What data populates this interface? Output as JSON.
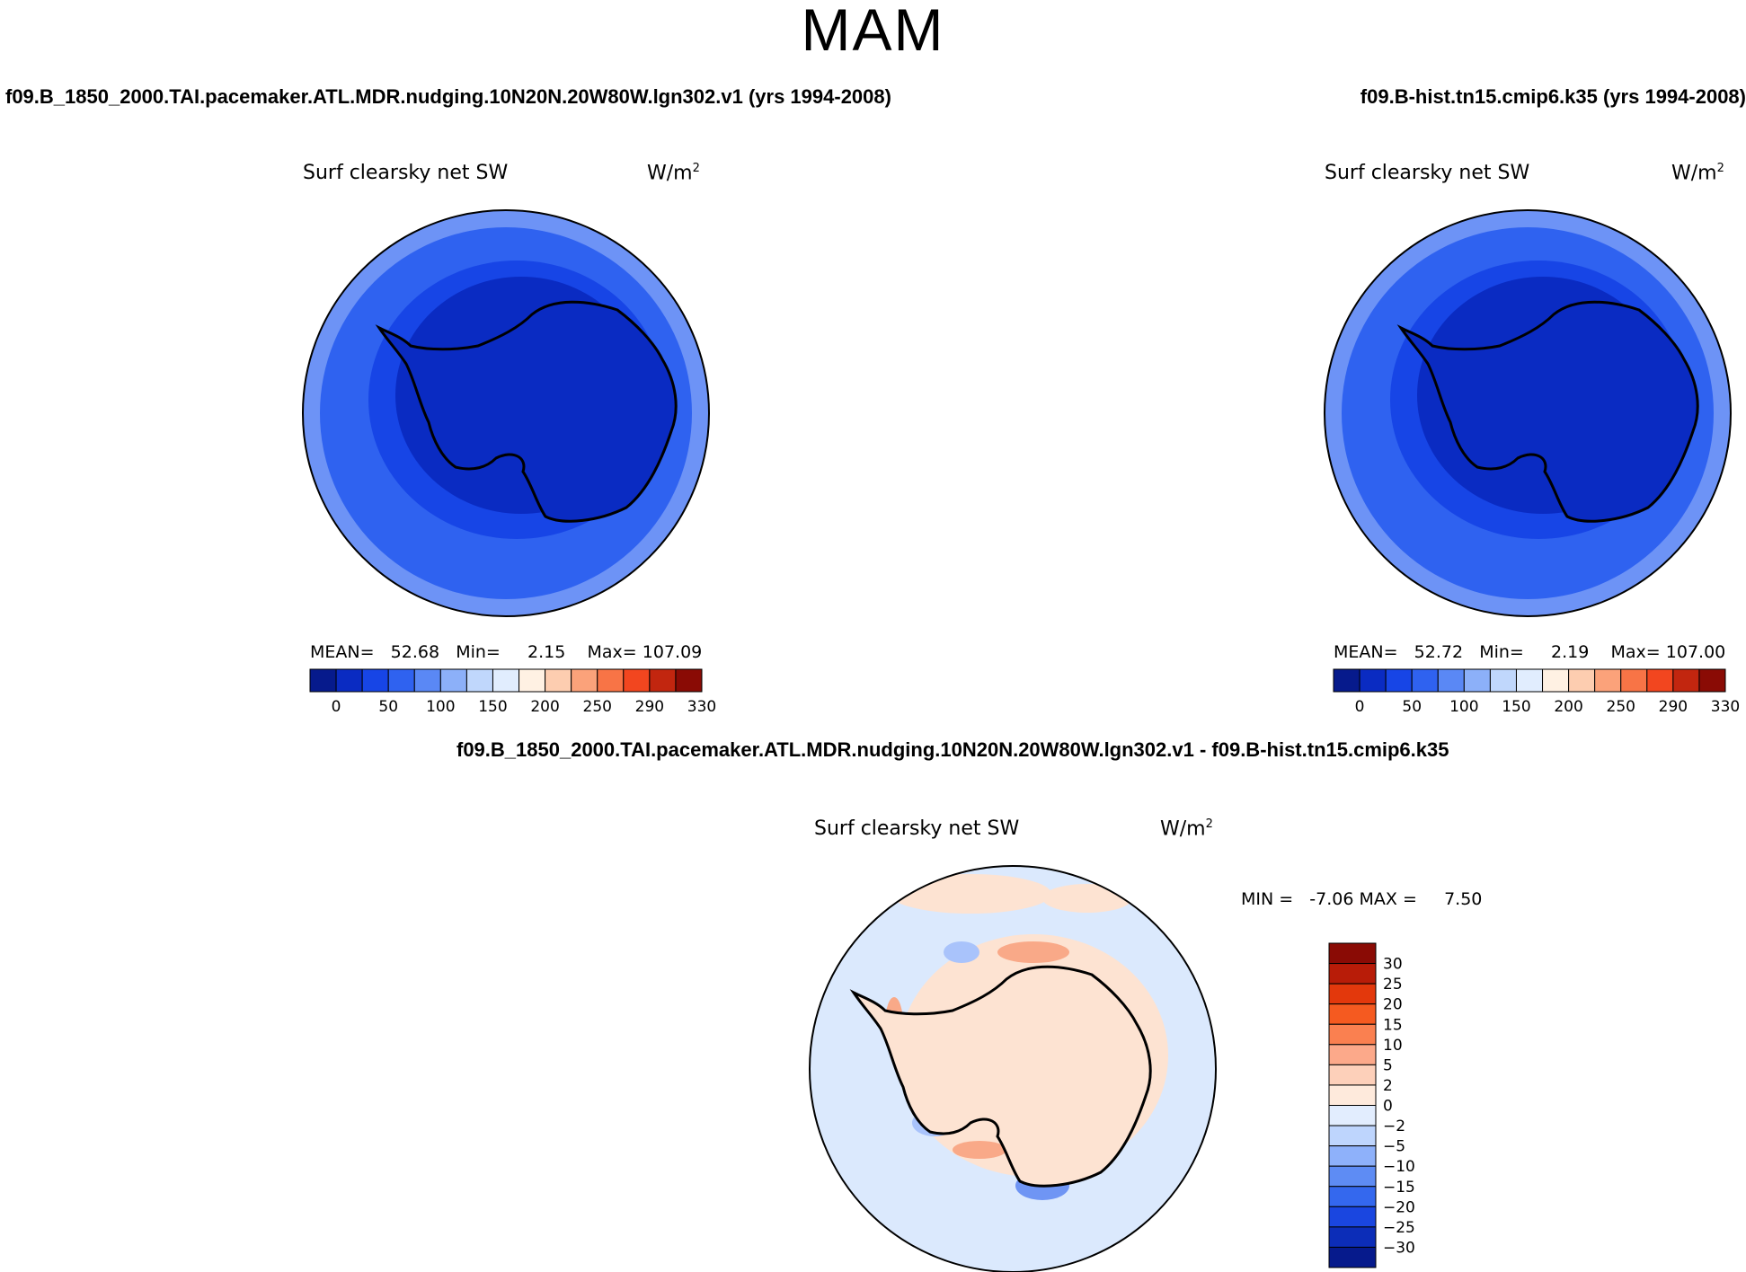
{
  "season_title": "MAM",
  "left_panel": {
    "title": "f09.B_1850_2000.TAI.pacemaker.ATL.MDR.nudging.10N20N.20W80W.lgn302.v1 (yrs 1994-2008)",
    "variable": "Surf clearsky net SW",
    "units": "W/m",
    "units_sup": "2",
    "mean_label": "MEAN=",
    "mean_value": "52.68",
    "min_label": "Min=",
    "min_value": "2.15",
    "max_label": "Max=",
    "max_value": "107.09"
  },
  "right_panel": {
    "title": "f09.B-hist.tn15.cmip6.k35 (yrs 1994-2008)",
    "variable": "Surf clearsky net SW",
    "units": "W/m",
    "units_sup": "2",
    "mean_label": "MEAN=",
    "mean_value": "52.72",
    "min_label": "Min=",
    "min_value": "2.19",
    "max_label": "Max=",
    "max_value": "107.00"
  },
  "diff_panel": {
    "title": "f09.B_1850_2000.TAI.pacemaker.ATL.MDR.nudging.10N20N.20W80W.lgn302.v1 - f09.B-hist.tn15.cmip6.k35",
    "variable": "Surf clearsky net SW",
    "units": "W/m",
    "units_sup": "2",
    "min_label": "MIN =",
    "min_value": "-7.06",
    "max_label": "MAX =",
    "max_value": "7.50"
  },
  "abs_colorbar": {
    "colors": [
      "#061a8c",
      "#0a2bc2",
      "#1745e6",
      "#2f62f0",
      "#5a88f5",
      "#8cb0f9",
      "#c0d7fc",
      "#e1edfe",
      "#fff1e3",
      "#fdcdb0",
      "#fba27a",
      "#f87446",
      "#f2461f",
      "#c2260f",
      "#8a0b05"
    ],
    "labels": [
      "0",
      "50",
      "100",
      "150",
      "200",
      "250",
      "290",
      "330"
    ]
  },
  "diff_colorbar": {
    "colors_top_to_bottom": [
      "#8a0b05",
      "#b81c08",
      "#e3380c",
      "#f55a20",
      "#fa8050",
      "#fca98a",
      "#fdd0ba",
      "#feeadc",
      "#e2edfe",
      "#bed5fd",
      "#8eb1fa",
      "#5e8cf4",
      "#3468ee",
      "#1a46e0",
      "#0c2db8",
      "#061a8c"
    ],
    "labels_top_to_bottom": [
      "30",
      "25",
      "20",
      "15",
      "10",
      "5",
      "2",
      "0",
      "-2",
      "-5",
      "-10",
      "-15",
      "-20",
      "-25",
      "-30"
    ]
  },
  "map_colors": {
    "ring_outer": "#6d93f6",
    "ring_mid": "#2f62f0",
    "ring_inner": "#1745e6",
    "continent": "#0a2bc2",
    "diff_background": "#dbe9fd",
    "diff_positive": "#fde3d2",
    "diff_positive_strong": "#f9a988",
    "diff_negative": "#a9c3fb",
    "diff_negative_strong": "#6f95f4"
  }
}
